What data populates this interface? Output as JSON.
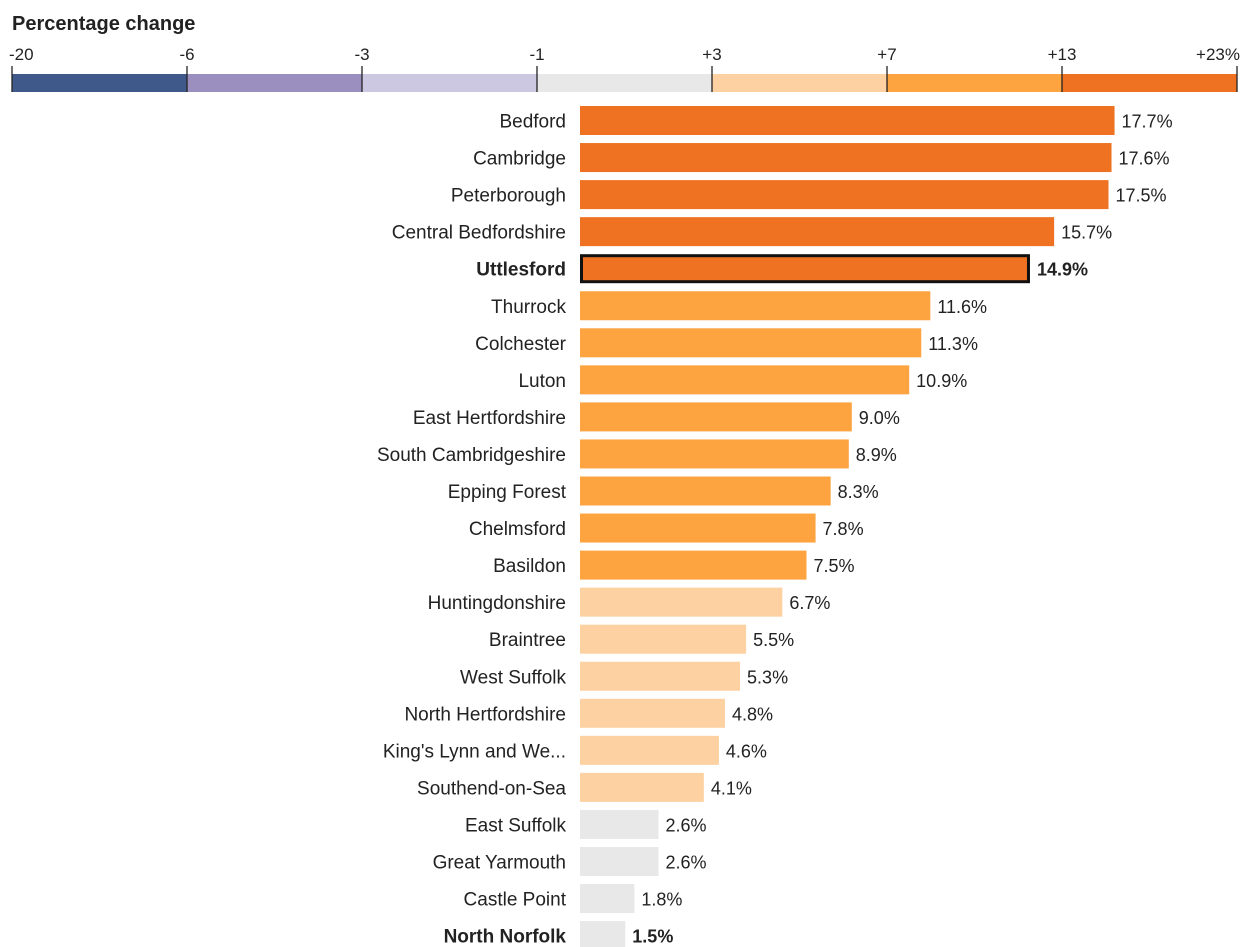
{
  "chart_data": {
    "type": "bar",
    "orientation": "horizontal",
    "legend": {
      "title": "Percentage change",
      "ticks": [
        "-20",
        "-6",
        "-3",
        "-1",
        "+3",
        "+7",
        "+13",
        "+23%"
      ],
      "colors": [
        "#3f5a8a",
        "#9b8fc0",
        "#cdc8e2",
        "#e8e8e8",
        "#fdd1a1",
        "#fda33f",
        "#ee7222"
      ]
    },
    "categories": [
      "Bedford",
      "Cambridge",
      "Peterborough",
      "Central Bedfordshire",
      "Uttlesford",
      "Thurrock",
      "Colchester",
      "Luton",
      "East Hertfordshire",
      "South Cambridgeshire",
      "Epping Forest",
      "Chelmsford",
      "Basildon",
      "Huntingdonshire",
      "Braintree",
      "West Suffolk",
      "North Hertfordshire",
      "King's Lynn and We...",
      "Southend-on-Sea",
      "East Suffolk",
      "Great Yarmouth",
      "Castle Point",
      "North Norfolk"
    ],
    "values": [
      17.7,
      17.6,
      17.5,
      15.7,
      14.9,
      11.6,
      11.3,
      10.9,
      9.0,
      8.9,
      8.3,
      7.8,
      7.5,
      6.7,
      5.5,
      5.3,
      4.8,
      4.6,
      4.1,
      2.6,
      2.6,
      1.8,
      1.5
    ],
    "value_labels": [
      "17.7%",
      "17.6%",
      "17.5%",
      "15.7%",
      "14.9%",
      "11.6%",
      "11.3%",
      "10.9%",
      "9.0%",
      "8.9%",
      "8.3%",
      "7.8%",
      "7.5%",
      "6.7%",
      "5.5%",
      "5.3%",
      "4.8%",
      "4.6%",
      "4.1%",
      "2.6%",
      "2.6%",
      "1.8%",
      "1.5%"
    ],
    "highlighted": [
      "Uttlesford",
      "North Norfolk"
    ],
    "xlim": [
      0,
      18
    ]
  }
}
